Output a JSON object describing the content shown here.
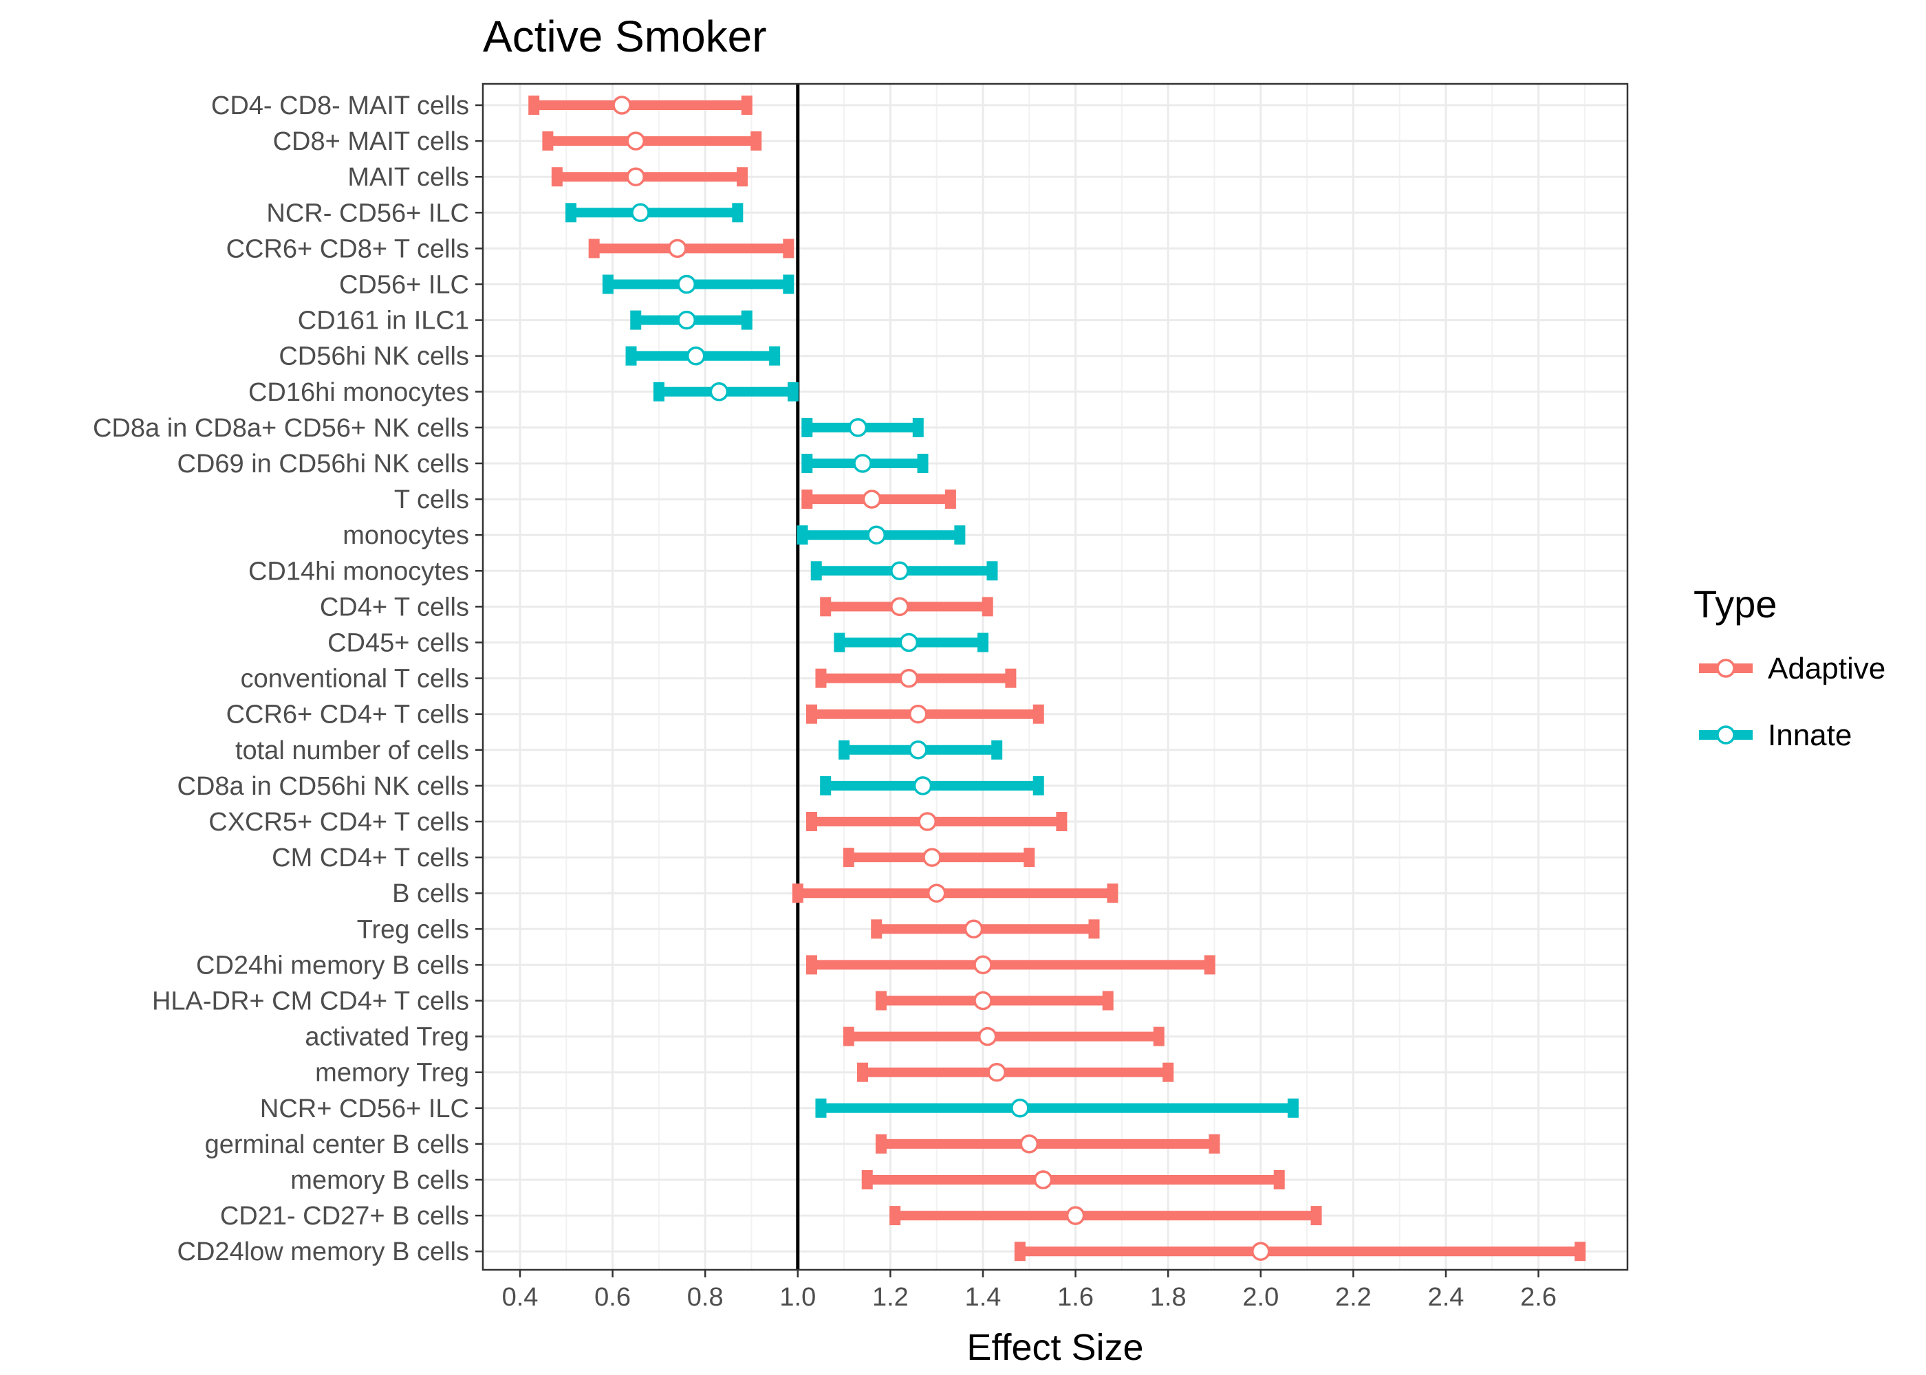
{
  "chart_data": {
    "type": "forest",
    "title": "Active Smoker",
    "xlabel": "Effect Size",
    "ylabel": "",
    "xlim": [
      0.32,
      2.8
    ],
    "xticks": [
      "0.4",
      "0.6",
      "0.8",
      "1.0",
      "1.2",
      "1.4",
      "1.6",
      "1.8",
      "2.0",
      "2.2",
      "2.4",
      "2.6"
    ],
    "reference_line": 1.0,
    "grid": true,
    "legend": {
      "title": "Type",
      "placement": "right",
      "entries": [
        {
          "label": "Adaptive",
          "color": "#F8766D"
        },
        {
          "label": "Innate",
          "color": "#00BFC4"
        }
      ]
    },
    "rows": [
      {
        "label": "CD4- CD8- MAIT cells",
        "type": "Adaptive",
        "estimate": 0.62,
        "low": 0.43,
        "high": 0.89
      },
      {
        "label": "CD8+ MAIT cells",
        "type": "Adaptive",
        "estimate": 0.65,
        "low": 0.46,
        "high": 0.91
      },
      {
        "label": "MAIT cells",
        "type": "Adaptive",
        "estimate": 0.65,
        "low": 0.48,
        "high": 0.88
      },
      {
        "label": "NCR- CD56+ ILC",
        "type": "Innate",
        "estimate": 0.66,
        "low": 0.51,
        "high": 0.87
      },
      {
        "label": "CCR6+ CD8+ T cells",
        "type": "Adaptive",
        "estimate": 0.74,
        "low": 0.56,
        "high": 0.98
      },
      {
        "label": "CD56+ ILC",
        "type": "Innate",
        "estimate": 0.76,
        "low": 0.59,
        "high": 0.98
      },
      {
        "label": "CD161 in ILC1",
        "type": "Innate",
        "estimate": 0.76,
        "low": 0.65,
        "high": 0.89
      },
      {
        "label": "CD56hi NK cells",
        "type": "Innate",
        "estimate": 0.78,
        "low": 0.64,
        "high": 0.95
      },
      {
        "label": "CD16hi monocytes",
        "type": "Innate",
        "estimate": 0.83,
        "low": 0.7,
        "high": 0.99
      },
      {
        "label": "CD8a in CD8a+ CD56+ NK cells",
        "type": "Innate",
        "estimate": 1.13,
        "low": 1.02,
        "high": 1.26
      },
      {
        "label": "CD69 in CD56hi NK cells",
        "type": "Innate",
        "estimate": 1.14,
        "low": 1.02,
        "high": 1.27
      },
      {
        "label": "T cells",
        "type": "Adaptive",
        "estimate": 1.16,
        "low": 1.02,
        "high": 1.33
      },
      {
        "label": "monocytes",
        "type": "Innate",
        "estimate": 1.17,
        "low": 1.01,
        "high": 1.35
      },
      {
        "label": "CD14hi monocytes",
        "type": "Innate",
        "estimate": 1.22,
        "low": 1.04,
        "high": 1.42
      },
      {
        "label": "CD4+ T cells",
        "type": "Adaptive",
        "estimate": 1.22,
        "low": 1.06,
        "high": 1.41
      },
      {
        "label": "CD45+ cells",
        "type": "Innate",
        "estimate": 1.24,
        "low": 1.09,
        "high": 1.4
      },
      {
        "label": "conventional T cells",
        "type": "Adaptive",
        "estimate": 1.24,
        "low": 1.05,
        "high": 1.46
      },
      {
        "label": "CCR6+ CD4+ T cells",
        "type": "Adaptive",
        "estimate": 1.26,
        "low": 1.03,
        "high": 1.52
      },
      {
        "label": "total number of cells",
        "type": "Innate",
        "estimate": 1.26,
        "low": 1.1,
        "high": 1.43
      },
      {
        "label": "CD8a in CD56hi NK cells",
        "type": "Innate",
        "estimate": 1.27,
        "low": 1.06,
        "high": 1.52
      },
      {
        "label": "CXCR5+ CD4+ T cells",
        "type": "Adaptive",
        "estimate": 1.28,
        "low": 1.03,
        "high": 1.57
      },
      {
        "label": "CM CD4+ T cells",
        "type": "Adaptive",
        "estimate": 1.29,
        "low": 1.11,
        "high": 1.5
      },
      {
        "label": "B cells",
        "type": "Adaptive",
        "estimate": 1.3,
        "low": 1.0,
        "high": 1.68
      },
      {
        "label": "Treg cells",
        "type": "Adaptive",
        "estimate": 1.38,
        "low": 1.17,
        "high": 1.64
      },
      {
        "label": "CD24hi memory B cells",
        "type": "Adaptive",
        "estimate": 1.4,
        "low": 1.03,
        "high": 1.89
      },
      {
        "label": "HLA-DR+ CM CD4+ T cells",
        "type": "Adaptive",
        "estimate": 1.4,
        "low": 1.18,
        "high": 1.67
      },
      {
        "label": "activated Treg",
        "type": "Adaptive",
        "estimate": 1.41,
        "low": 1.11,
        "high": 1.78
      },
      {
        "label": "memory Treg",
        "type": "Adaptive",
        "estimate": 1.43,
        "low": 1.14,
        "high": 1.8
      },
      {
        "label": "NCR+ CD56+ ILC",
        "type": "Innate",
        "estimate": 1.48,
        "low": 1.05,
        "high": 2.07
      },
      {
        "label": "germinal center B cells",
        "type": "Adaptive",
        "estimate": 1.5,
        "low": 1.18,
        "high": 1.9
      },
      {
        "label": "memory B cells",
        "type": "Adaptive",
        "estimate": 1.53,
        "low": 1.15,
        "high": 2.04
      },
      {
        "label": "CD21- CD27+ B cells",
        "type": "Adaptive",
        "estimate": 1.6,
        "low": 1.21,
        "high": 2.12
      },
      {
        "label": "CD24low memory B cells",
        "type": "Adaptive",
        "estimate": 2.0,
        "low": 1.48,
        "high": 2.69
      }
    ]
  }
}
